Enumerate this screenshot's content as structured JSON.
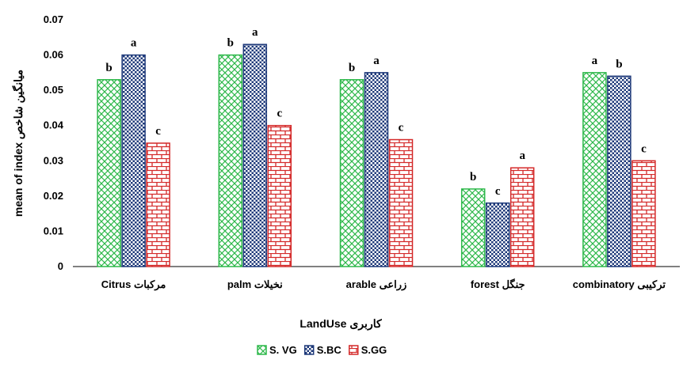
{
  "chart_data": {
    "type": "bar",
    "categories": [
      "Citrus مرکبات",
      "palm نخیلات",
      "arable زراعی",
      "forest جنگل",
      "combinatory ترکیبی"
    ],
    "series": [
      {
        "name": "S. VG",
        "values": [
          0.053,
          0.06,
          0.053,
          0.022,
          0.055
        ],
        "letters": [
          "b",
          "b",
          "b",
          "b",
          "a"
        ],
        "color": "#2db84a"
      },
      {
        "name": "S.BC",
        "values": [
          0.06,
          0.063,
          0.055,
          0.018,
          0.054
        ],
        "letters": [
          "a",
          "a",
          "a",
          "c",
          "b"
        ],
        "color": "#1f3a7a"
      },
      {
        "name": "S.GG",
        "values": [
          0.035,
          0.04,
          0.036,
          0.028,
          0.03
        ],
        "letters": [
          "c",
          "c",
          "c",
          "a",
          "c"
        ],
        "color": "#d42a2a"
      }
    ],
    "ylim": [
      0,
      0.07
    ],
    "yticks": [
      "0",
      "0.01",
      "0.02",
      "0.03",
      "0.04",
      "0.05",
      "0.06",
      "0.07"
    ],
    "xlabel": "LandUse کاربری",
    "ylabel": "mean of index میانگین شاخص",
    "grid": false,
    "legend_position": "bottom"
  }
}
